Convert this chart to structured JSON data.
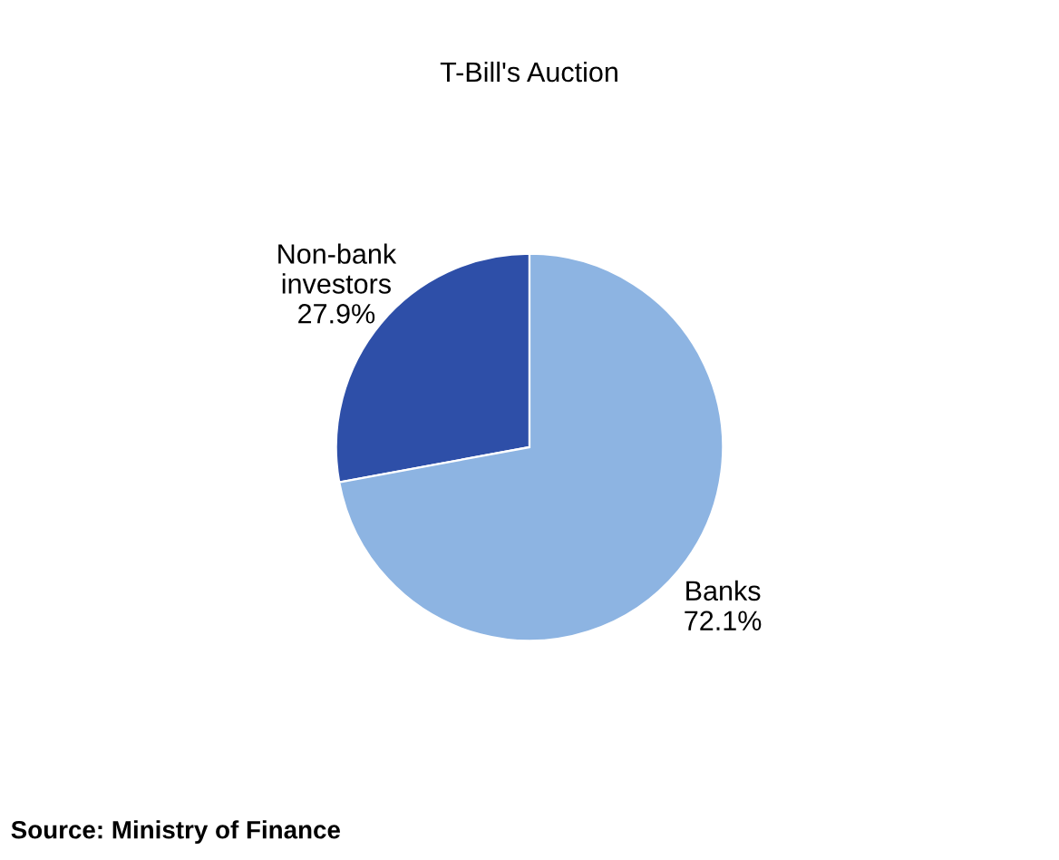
{
  "chart_data": {
    "type": "pie",
    "title": "T-Bill's Auction",
    "categories": [
      "Non-bank\ninvestors",
      "Banks"
    ],
    "values": [
      27.9,
      72.1
    ],
    "value_labels": [
      "27.9%",
      "72.1%"
    ],
    "colors": [
      "#2e4fa8",
      "#8db4e2"
    ],
    "legend": false,
    "annotations": [
      "Source: Ministry of Finance"
    ]
  }
}
